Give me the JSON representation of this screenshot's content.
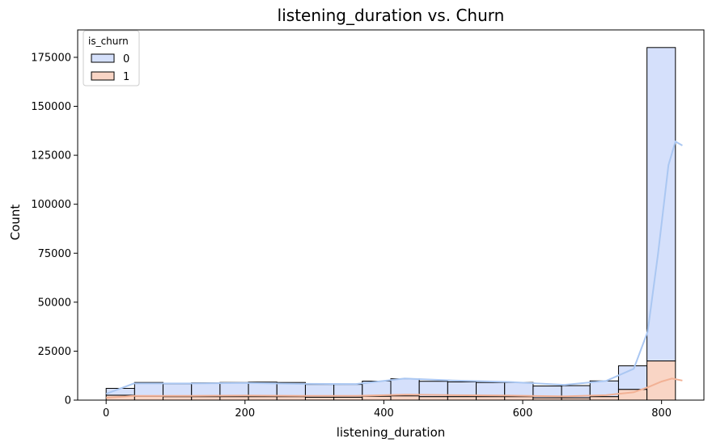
{
  "chart_data": {
    "type": "bar",
    "subtype": "stacked-histogram-with-kde",
    "title": "listening_duration vs. Churn",
    "xlabel": "listening_duration",
    "ylabel": "Count",
    "xlim": [
      -41,
      861
    ],
    "ylim": [
      0,
      189000
    ],
    "xticks": [
      0,
      200,
      400,
      600,
      800
    ],
    "yticks": [
      0,
      25000,
      50000,
      75000,
      100000,
      125000,
      150000,
      175000
    ],
    "grid": false,
    "bins": {
      "start": 0,
      "width": 41,
      "count": 20
    },
    "series": [
      {
        "name": "0",
        "fill": "#d5e0fb",
        "kde_color": "#aac7f2",
        "values": [
          3500,
          7000,
          6500,
          7000,
          7200,
          7400,
          7200,
          6500,
          6500,
          7700,
          8700,
          7800,
          7500,
          7200,
          7200,
          6000,
          6200,
          8000,
          12000,
          160000
        ],
        "kde": [
          [
            0,
            3200
          ],
          [
            40,
            8500
          ],
          [
            120,
            8500
          ],
          [
            200,
            8800
          ],
          [
            280,
            8300
          ],
          [
            360,
            8200
          ],
          [
            430,
            11000
          ],
          [
            500,
            10000
          ],
          [
            580,
            9300
          ],
          [
            660,
            7800
          ],
          [
            720,
            9800
          ],
          [
            760,
            16000
          ],
          [
            780,
            35000
          ],
          [
            795,
            75000
          ],
          [
            810,
            120000
          ],
          [
            820,
            132000
          ],
          [
            830,
            130000
          ]
        ]
      },
      {
        "name": "1",
        "fill": "#f9d5c5",
        "kde_color": "#f2b195",
        "values": [
          2500,
          2000,
          1800,
          1800,
          1800,
          1800,
          1800,
          1500,
          1500,
          2000,
          2200,
          1800,
          1800,
          1800,
          1800,
          1200,
          1200,
          1800,
          5500,
          20000
        ],
        "kde": [
          [
            0,
            1200
          ],
          [
            40,
            2200
          ],
          [
            120,
            2200
          ],
          [
            200,
            2300
          ],
          [
            280,
            2200
          ],
          [
            360,
            2200
          ],
          [
            430,
            2800
          ],
          [
            500,
            2500
          ],
          [
            580,
            2300
          ],
          [
            660,
            1900
          ],
          [
            720,
            2500
          ],
          [
            760,
            4000
          ],
          [
            780,
            6500
          ],
          [
            800,
            9500
          ],
          [
            815,
            11000
          ],
          [
            830,
            10000
          ]
        ]
      }
    ],
    "legend": {
      "title": "is_churn",
      "placement": "top-left",
      "entries": [
        "0",
        "1"
      ]
    },
    "edge_color": "#000000"
  }
}
